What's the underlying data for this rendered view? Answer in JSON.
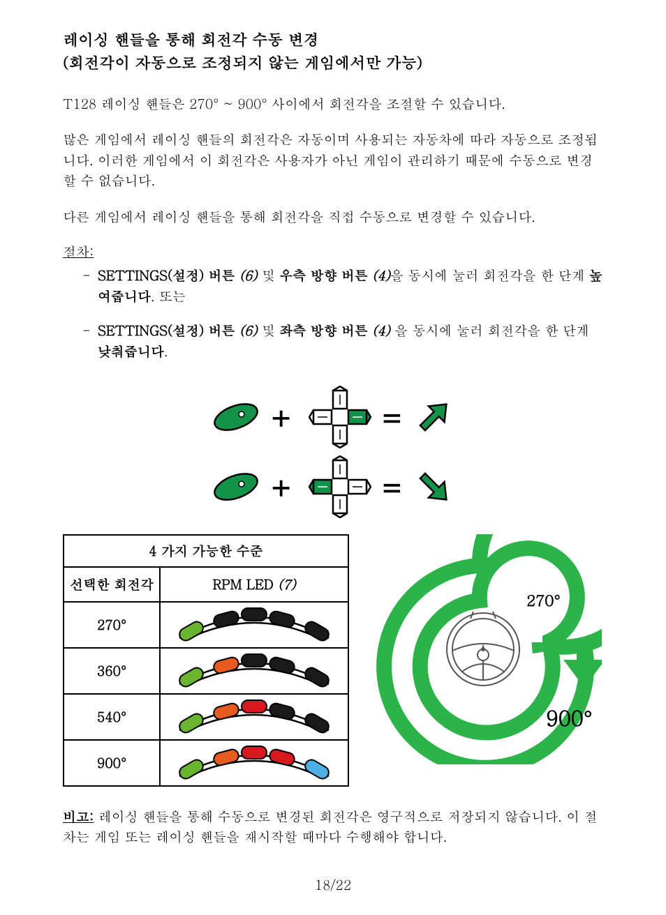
{
  "title_line1": "레이싱 핸들을 통해 회전각 수동 변경",
  "title_line2": "(회전각이 자동으로 조정되지 않는 게임에서만 가능)",
  "para1": "T128 레이싱 핸들은 270° ~ 900° 사이에서 회전각을 조절할 수 있습니다.",
  "para2": "많은 게임에서 레이싱 핸들의 회전각은 자동이며 사용되는 자동차에 따라 자동으로 조정됩니다. 이러한 게임에서 이 회전각은 사용자가 아닌 게임이 관리하기 때문에 수동으로 변경할 수 없습니다.",
  "para3": "다른 게임에서 레이싱 핸들을 통해 회전각을 직접 수동으로 변경할 수 있습니다.",
  "procedure_label": "절차:",
  "step1_a": "SETTINGS(설정) 버튼 ",
  "step1_b": "(6)",
  "step1_c": " 및 ",
  "step1_d": "우측 방향 버튼 ",
  "step1_e": "(4)",
  "step1_f": "을 동시에 눌러 회전각을 한 단계 ",
  "step1_g": "높여줍니다",
  "step1_h": ". 또는",
  "step2_a": "SETTINGS(설정) 버튼 ",
  "step2_b": "(6)",
  "step2_c": " 및 ",
  "step2_d": "좌측 방향 버튼 ",
  "step2_e": "(4)",
  "step2_f": " 을 동시에 눌러 회전각을 한 단계 ",
  "step2_g": "낮춰줍니다",
  "step2_h": ".",
  "table_header": "4 가지 가능한 수준",
  "col1": "선택한 회전각",
  "col2_a": "RPM LED ",
  "col2_b": "(7)",
  "rows": [
    {
      "angle": "270°",
      "colors": [
        "#6ab52f",
        "#1a1a1a",
        "#1a1a1a",
        "#1a1a1a",
        "#1a1a1a"
      ]
    },
    {
      "angle": "360°",
      "colors": [
        "#6ab52f",
        "#e85d1f",
        "#1a1a1a",
        "#1a1a1a",
        "#1a1a1a"
      ]
    },
    {
      "angle": "540°",
      "colors": [
        "#6ab52f",
        "#e85d1f",
        "#d8171f",
        "#1a1a1a",
        "#1a1a1a"
      ]
    },
    {
      "angle": "900°",
      "colors": [
        "#6ab52f",
        "#e85d1f",
        "#d8171f",
        "#d8171f",
        "#4db1e4"
      ]
    }
  ],
  "spiral_label_small": "270°",
  "spiral_label_big": "900°",
  "note_label": "비고:",
  "note_body": " 레이싱 핸들을 통해 수동으로 변경된 회전각은 영구적으로 저장되지 않습니다. 이 절차는 게임 또는 레이싱 핸들을 재시작할 때마다 수행해야 합니다.",
  "page": "18/22",
  "colors": {
    "green": "#13934a",
    "green_bright": "#2cb34a",
    "black": "#000000",
    "grey": "#808080"
  }
}
